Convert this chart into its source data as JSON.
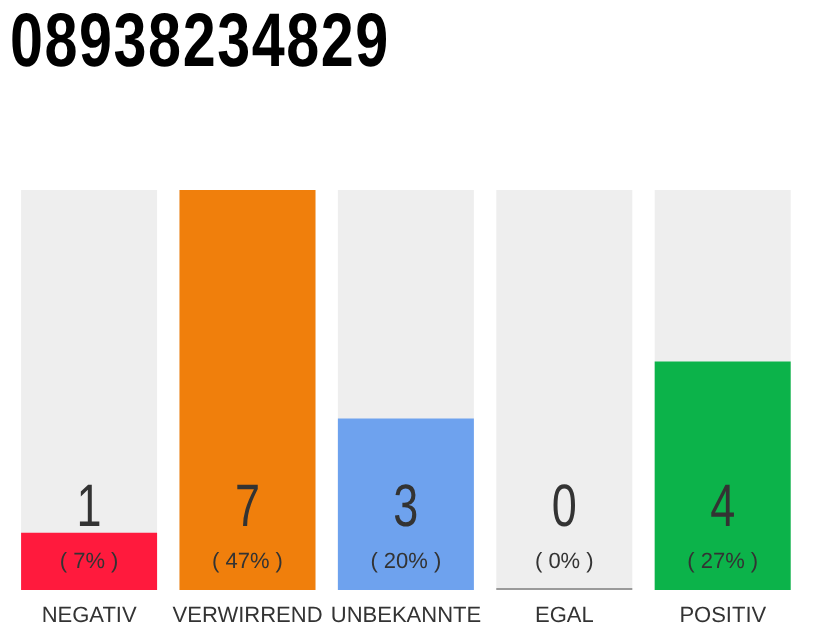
{
  "chart_data": {
    "type": "bar",
    "title": "08938234829",
    "categories": [
      "NEGATIV",
      "VERWIRREND",
      "UNBEKANNTE",
      "EGAL",
      "POSITIV"
    ],
    "values": [
      1,
      7,
      3,
      0,
      4
    ],
    "colors": [
      "#ff1a3d",
      "#f07f0c",
      "#6ea2ee",
      "#9a9a9a",
      "#0cb34a"
    ],
    "data_labels": true,
    "annotations": [
      "( 7% )",
      "( 47% )",
      "( 20% )",
      "( 0% )",
      "( 27% )"
    ]
  }
}
